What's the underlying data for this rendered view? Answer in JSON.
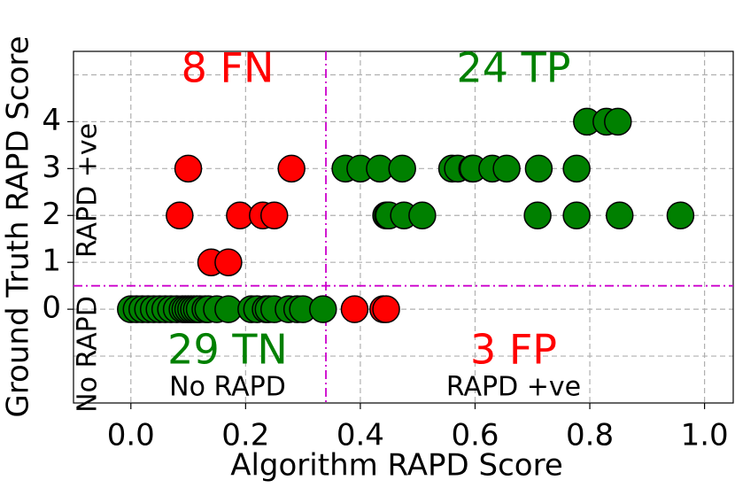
{
  "chart_data": {
    "type": "scatter",
    "x_label": "Algorithm RAPD Score",
    "y_label": "Ground Truth RAPD Score",
    "xlim": [
      -0.1,
      1.05
    ],
    "ylim": [
      -2,
      5.5
    ],
    "xticks": [
      {
        "value": 0,
        "label": "0.0"
      },
      0.2,
      0.4,
      0.6,
      0.8,
      {
        "value": 1,
        "label": "1.0"
      }
    ],
    "yticks": [
      0,
      1,
      2,
      3,
      4
    ],
    "ygrid": [
      -1,
      0,
      1,
      2,
      3,
      4,
      5
    ],
    "grid": true,
    "thresholds": {
      "x": 0.34,
      "y": 0.5,
      "color": "#cc00cc"
    },
    "series": [
      {
        "color": "#ff0000",
        "x": [
          0.085,
          0.1,
          0.14,
          0.17,
          0.19,
          0.23,
          0.25,
          0.28
        ],
        "y": [
          2,
          3,
          1,
          1,
          2,
          2,
          2,
          3
        ]
      },
      {
        "color": "#ff0000",
        "x": [
          0.39,
          0.44,
          0.445
        ],
        "y": [
          0,
          0,
          0
        ]
      },
      {
        "color": "#008000",
        "x": [
          0.374,
          0.4,
          0.434,
          0.473,
          0.56,
          0.57,
          0.595,
          0.597,
          0.63,
          0.655,
          0.711,
          0.777,
          0.445,
          0.448,
          0.45,
          0.476,
          0.508,
          0.709,
          0.777,
          0.852,
          0.958,
          0.795,
          0.829,
          0.849
        ],
        "y": [
          3,
          3,
          3,
          3,
          3,
          3,
          3,
          3,
          3,
          3,
          3,
          3,
          2,
          2,
          2,
          2,
          2,
          2,
          2,
          2,
          2,
          4,
          4,
          4
        ]
      },
      {
        "color": "#008000",
        "x": [
          0.0,
          0.01,
          0.02,
          0.03,
          0.04,
          0.05,
          0.06,
          0.07,
          0.08,
          0.09,
          0.095,
          0.1,
          0.105,
          0.11,
          0.115,
          0.12,
          0.13,
          0.135,
          0.15,
          0.17,
          0.21,
          0.22,
          0.235,
          0.24,
          0.25,
          0.275,
          0.29,
          0.3,
          0.335
        ],
        "y": [
          0,
          0,
          0,
          0,
          0,
          0,
          0,
          0,
          0,
          0,
          0,
          0,
          0,
          0,
          0,
          0,
          0,
          0,
          0,
          0,
          0,
          0,
          0,
          0,
          0,
          0,
          0,
          0,
          0
        ]
      }
    ],
    "annotations": [
      {
        "text": "8 FN",
        "color": "#ff0000"
      },
      {
        "text": "24 TP",
        "color": "#008000"
      },
      {
        "text": "29 TN",
        "color": "#008000"
      },
      {
        "text": "3 FP",
        "color": "#ff0000"
      },
      {
        "text": "No RAPD",
        "color": "#000000"
      },
      {
        "text": "RAPD +ve",
        "color": "#000000"
      },
      {
        "text": "RAPD +ve",
        "color": "#000000"
      },
      {
        "text": "No RAPD",
        "color": "#000000"
      }
    ]
  }
}
